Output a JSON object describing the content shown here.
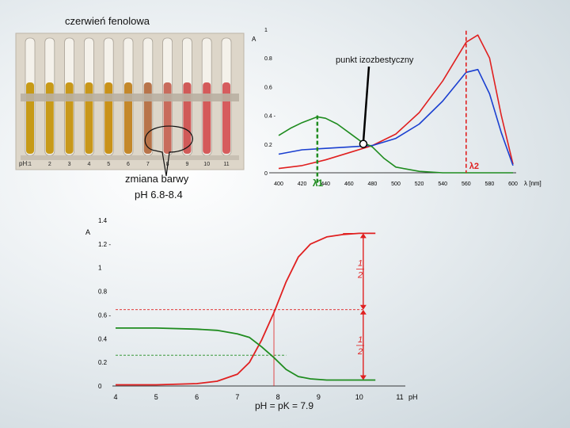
{
  "labels": {
    "photo_title": "czerwień fenolowa",
    "color_change": "zmiana barwy",
    "ph_range": "pH 6.8-8.4",
    "isosbestic_point": "punkt izozbestyczny",
    "ph_pk": "pH = pK = 7.9",
    "ph_row_prefix": "pH:",
    "half_fraction_num": "1",
    "half_fraction_den": "2"
  },
  "photo": {
    "ph_tick_labels": [
      "1",
      "2",
      "3",
      "4",
      "5",
      "6",
      "7",
      "8",
      "9",
      "10",
      "11"
    ],
    "tube_colors": [
      "#c79a16",
      "#c89a18",
      "#c8981a",
      "#c8971a",
      "#c99219",
      "#c4882a",
      "#b8744a",
      "#c86b5c",
      "#d05a58",
      "#d45a5a",
      "#d65c5e"
    ],
    "background_color": "#ddd7cc"
  },
  "chart_data": [
    {
      "type": "line",
      "title": "",
      "xlabel": "λ [nm]",
      "ylabel": "A",
      "xlim": [
        400,
        600
      ],
      "ylim": [
        0,
        1
      ],
      "x_ticks": [
        400,
        420,
        440,
        460,
        480,
        500,
        520,
        540,
        560,
        580,
        600
      ],
      "y_ticks": [
        0,
        0.2,
        0.4,
        0.6,
        0.8,
        1
      ],
      "y_tick_labels": [
        "0",
        "0.2",
        "0.4 -",
        "0.6",
        "0.8",
        "1"
      ],
      "lambda1_label": "λ1",
      "lambda2_label": "λ2",
      "lambda1": 433,
      "lambda2": 560,
      "isosbestic": {
        "x": 479,
        "y": 0.19
      },
      "series": [
        {
          "color": "#e02020",
          "x": [
            400,
            420,
            440,
            460,
            480,
            500,
            520,
            540,
            560,
            570,
            580,
            590,
            600
          ],
          "y": [
            0.03,
            0.05,
            0.09,
            0.14,
            0.19,
            0.27,
            0.42,
            0.64,
            0.91,
            0.96,
            0.8,
            0.4,
            0.06
          ]
        },
        {
          "color": "#1a3fd0",
          "x": [
            400,
            420,
            440,
            460,
            480,
            500,
            520,
            540,
            560,
            570,
            580,
            590,
            600
          ],
          "y": [
            0.13,
            0.16,
            0.17,
            0.18,
            0.19,
            0.24,
            0.34,
            0.5,
            0.7,
            0.72,
            0.55,
            0.28,
            0.05
          ]
        },
        {
          "color": "#1f8c1f",
          "x": [
            400,
            410,
            420,
            433,
            440,
            450,
            460,
            470,
            480,
            490,
            500,
            520,
            540,
            560,
            600
          ],
          "y": [
            0.26,
            0.31,
            0.35,
            0.39,
            0.38,
            0.34,
            0.28,
            0.22,
            0.18,
            0.1,
            0.04,
            0.01,
            0.0,
            0.0,
            0.0
          ]
        }
      ]
    },
    {
      "type": "line",
      "title": "",
      "xlabel": "pH",
      "ylabel": "A",
      "xlim": [
        4,
        11
      ],
      "ylim": [
        0,
        1.4
      ],
      "x_ticks": [
        4,
        5,
        6,
        7,
        8,
        9,
        10,
        11
      ],
      "y_ticks": [
        0,
        0.2,
        0.4,
        0.6,
        0.8,
        1,
        1.2,
        1.4
      ],
      "y_tick_labels": [
        "0",
        "0.2",
        "0.4",
        "0.6 -",
        "0.8",
        "1",
        "1.2 -",
        "1.4"
      ],
      "pK": 7.9,
      "series": [
        {
          "color": "#e02020",
          "x": [
            4,
            5,
            6,
            6.5,
            7,
            7.3,
            7.6,
            7.9,
            8.2,
            8.5,
            8.8,
            9.2,
            9.6,
            10,
            10.4
          ],
          "y": [
            0.01,
            0.01,
            0.02,
            0.04,
            0.1,
            0.2,
            0.39,
            0.62,
            0.88,
            1.09,
            1.2,
            1.26,
            1.28,
            1.29,
            1.29
          ]
        },
        {
          "color": "#1f8c1f",
          "x": [
            4,
            5,
            6,
            6.5,
            7,
            7.3,
            7.6,
            7.9,
            8.2,
            8.5,
            8.8,
            9.2,
            9.6,
            10,
            10.4
          ],
          "y": [
            0.49,
            0.49,
            0.48,
            0.47,
            0.44,
            0.41,
            0.33,
            0.24,
            0.14,
            0.08,
            0.06,
            0.05,
            0.05,
            0.05,
            0.05
          ]
        }
      ]
    }
  ]
}
